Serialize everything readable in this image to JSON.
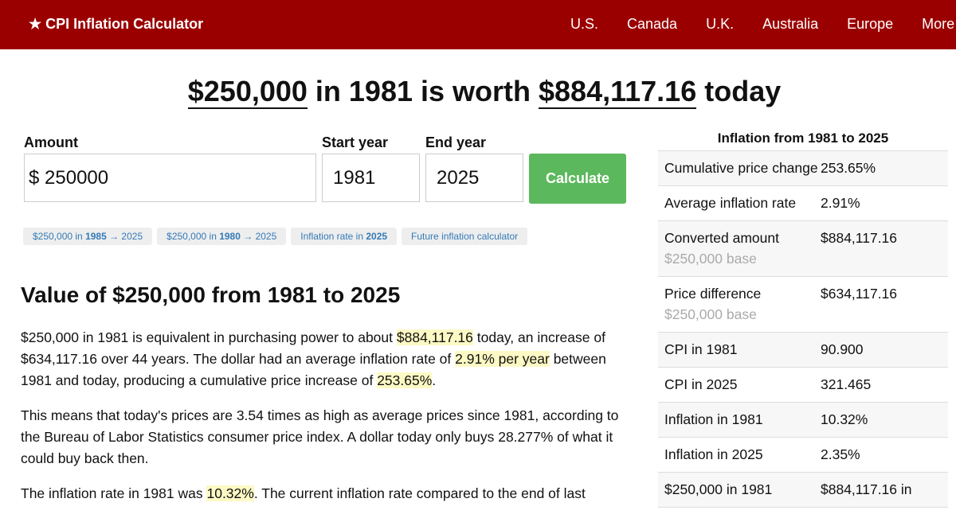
{
  "header": {
    "logo": "★ CPI Inflation Calculator",
    "nav": [
      "U.S.",
      "Canada",
      "U.K.",
      "Australia",
      "Europe",
      "More"
    ]
  },
  "headline": [
    {
      "text": "$250,000",
      "underline": true
    },
    " in 1981 is worth ",
    {
      "text": "$884,117.16",
      "underline": true
    },
    " today"
  ],
  "form": {
    "amount_label": "Amount",
    "currency": "$",
    "amount": "250000",
    "start_label": "Start year",
    "start": "1981",
    "end_label": "End year",
    "end": "2025",
    "button": "Calculate"
  },
  "quick_links": [
    [
      "$250,000 in ",
      {
        "text": "1985",
        "bold": true
      },
      " → 2025"
    ],
    [
      "$250,000 in ",
      {
        "text": "1980",
        "bold": true
      },
      " → 2025"
    ],
    [
      "Inflation rate in ",
      {
        "text": "2025",
        "bold": true
      }
    ],
    [
      "Future inflation calculator"
    ]
  ],
  "section_title": "Value of $250,000 from 1981 to 2025",
  "paragraphs": [
    [
      "$250,000 in 1981 is equivalent in purchasing power to about ",
      {
        "text": "$884,117.16",
        "highlight": true
      },
      " today, an increase of $634,117.16 over 44 years. The dollar had an average inflation rate of ",
      {
        "text": "2.91% per year",
        "highlight": true
      },
      " between 1981 and today, producing a cumulative price increase of ",
      {
        "text": "253.65%",
        "highlight": true
      },
      "."
    ],
    [
      "This means that today's prices are 3.54 times as high as average prices since 1981, according to the Bureau of Labor Statistics consumer price index. A dollar today only buys 28.277% of what it could buy back then."
    ],
    [
      "The inflation rate in 1981 was ",
      {
        "text": "10.32%",
        "highlight": true
      },
      ". The current inflation rate compared to the end of last"
    ]
  ],
  "table": {
    "title": "Inflation from 1981 to 2025",
    "rows": [
      {
        "label": "Cumulative price change",
        "value": "253.65%"
      },
      {
        "label": "Average inflation rate",
        "value": "2.91%"
      },
      {
        "label": "Converted amount",
        "sub": "$250,000 base",
        "value": "$884,117.16"
      },
      {
        "label": "Price difference",
        "sub": "$250,000 base",
        "value": "$634,117.16"
      },
      {
        "label": "CPI in 1981",
        "value": "90.900"
      },
      {
        "label": "CPI in 2025",
        "value": "321.465"
      },
      {
        "label": "Inflation in 1981",
        "value": "10.32%"
      },
      {
        "label": "Inflation in 2025",
        "value": "2.35%"
      },
      {
        "label": "$250,000 in 1981",
        "value": "$884,117.16 in"
      }
    ]
  }
}
